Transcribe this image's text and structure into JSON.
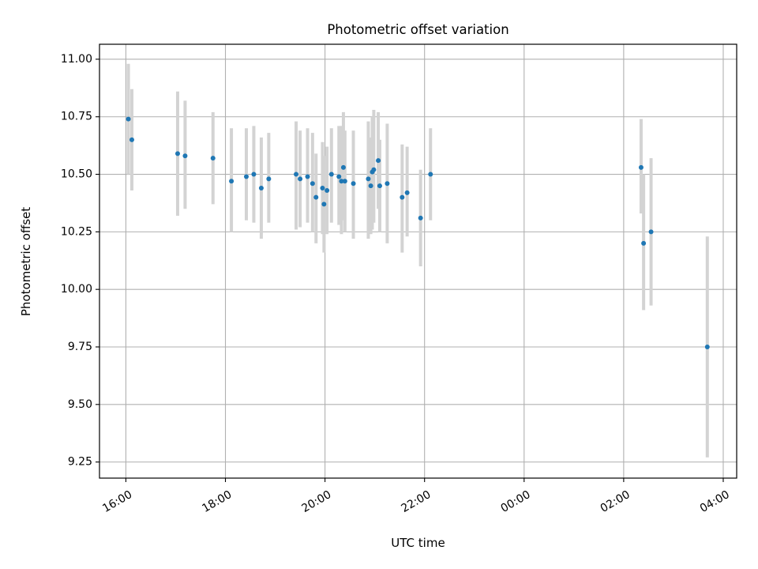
{
  "chart_data": {
    "type": "scatter",
    "title": "Photometric offset variation",
    "xlabel": "UTC time",
    "ylabel": "Photometric offset",
    "xlim": [
      -0.53,
      12.27
    ],
    "ylim": [
      9.18,
      11.065
    ],
    "grid": true,
    "x_unit": "hours since 16:00 UTC",
    "xticks": [
      {
        "value": 0,
        "label": "16:00"
      },
      {
        "value": 2,
        "label": "18:00"
      },
      {
        "value": 4,
        "label": "20:00"
      },
      {
        "value": 6,
        "label": "22:00"
      },
      {
        "value": 8,
        "label": "00:00"
      },
      {
        "value": 10,
        "label": "02:00"
      },
      {
        "value": 12,
        "label": "04:00"
      }
    ],
    "yticks": [
      {
        "value": 9.25,
        "label": "9.25"
      },
      {
        "value": 9.5,
        "label": "9.50"
      },
      {
        "value": 9.75,
        "label": "9.75"
      },
      {
        "value": 10.0,
        "label": "10.00"
      },
      {
        "value": 10.25,
        "label": "10.25"
      },
      {
        "value": 10.5,
        "label": "10.50"
      },
      {
        "value": 10.75,
        "label": "10.75"
      },
      {
        "value": 11.0,
        "label": "11.00"
      }
    ],
    "marker_color": "#1f77b4",
    "errorbar_color": "#d3d3d3",
    "points": [
      {
        "x": 0.05,
        "y": 10.74,
        "ylow": 10.5,
        "yhigh": 10.98
      },
      {
        "x": 0.12,
        "y": 10.65,
        "ylow": 10.43,
        "yhigh": 10.87
      },
      {
        "x": 1.04,
        "y": 10.59,
        "ylow": 10.32,
        "yhigh": 10.86
      },
      {
        "x": 1.19,
        "y": 10.58,
        "ylow": 10.35,
        "yhigh": 10.82
      },
      {
        "x": 1.75,
        "y": 10.57,
        "ylow": 10.37,
        "yhigh": 10.77
      },
      {
        "x": 2.12,
        "y": 10.47,
        "ylow": 10.25,
        "yhigh": 10.7
      },
      {
        "x": 2.42,
        "y": 10.49,
        "ylow": 10.3,
        "yhigh": 10.7
      },
      {
        "x": 2.57,
        "y": 10.5,
        "ylow": 10.29,
        "yhigh": 10.71
      },
      {
        "x": 2.72,
        "y": 10.44,
        "ylow": 10.22,
        "yhigh": 10.66
      },
      {
        "x": 2.87,
        "y": 10.48,
        "ylow": 10.29,
        "yhigh": 10.68
      },
      {
        "x": 3.42,
        "y": 10.5,
        "ylow": 10.26,
        "yhigh": 10.73
      },
      {
        "x": 3.5,
        "y": 10.48,
        "ylow": 10.27,
        "yhigh": 10.69
      },
      {
        "x": 3.65,
        "y": 10.49,
        "ylow": 10.29,
        "yhigh": 10.7
      },
      {
        "x": 3.75,
        "y": 10.46,
        "ylow": 10.25,
        "yhigh": 10.68
      },
      {
        "x": 3.82,
        "y": 10.4,
        "ylow": 10.2,
        "yhigh": 10.59
      },
      {
        "x": 3.95,
        "y": 10.44,
        "ylow": 10.24,
        "yhigh": 10.64
      },
      {
        "x": 3.98,
        "y": 10.37,
        "ylow": 10.16,
        "yhigh": 10.58
      },
      {
        "x": 4.04,
        "y": 10.43,
        "ylow": 10.24,
        "yhigh": 10.62
      },
      {
        "x": 4.13,
        "y": 10.5,
        "ylow": 10.29,
        "yhigh": 10.7
      },
      {
        "x": 4.28,
        "y": 10.49,
        "ylow": 10.28,
        "yhigh": 10.71
      },
      {
        "x": 4.33,
        "y": 10.47,
        "ylow": 10.24,
        "yhigh": 10.71
      },
      {
        "x": 4.37,
        "y": 10.53,
        "ylow": 10.3,
        "yhigh": 10.77
      },
      {
        "x": 4.4,
        "y": 10.47,
        "ylow": 10.25,
        "yhigh": 10.69
      },
      {
        "x": 4.57,
        "y": 10.46,
        "ylow": 10.22,
        "yhigh": 10.69
      },
      {
        "x": 4.87,
        "y": 10.48,
        "ylow": 10.22,
        "yhigh": 10.73
      },
      {
        "x": 4.92,
        "y": 10.45,
        "ylow": 10.24,
        "yhigh": 10.66
      },
      {
        "x": 4.95,
        "y": 10.51,
        "ylow": 10.26,
        "yhigh": 10.75
      },
      {
        "x": 4.98,
        "y": 10.52,
        "ylow": 10.29,
        "yhigh": 10.78
      },
      {
        "x": 5.07,
        "y": 10.56,
        "ylow": 10.35,
        "yhigh": 10.77
      },
      {
        "x": 5.1,
        "y": 10.45,
        "ylow": 10.25,
        "yhigh": 10.65
      },
      {
        "x": 5.25,
        "y": 10.46,
        "ylow": 10.2,
        "yhigh": 10.72
      },
      {
        "x": 5.55,
        "y": 10.4,
        "ylow": 10.16,
        "yhigh": 10.63
      },
      {
        "x": 5.65,
        "y": 10.42,
        "ylow": 10.23,
        "yhigh": 10.62
      },
      {
        "x": 5.92,
        "y": 10.31,
        "ylow": 10.1,
        "yhigh": 10.52
      },
      {
        "x": 6.12,
        "y": 10.5,
        "ylow": 10.3,
        "yhigh": 10.7
      },
      {
        "x": 10.35,
        "y": 10.53,
        "ylow": 10.33,
        "yhigh": 10.74
      },
      {
        "x": 10.4,
        "y": 10.2,
        "ylow": 9.91,
        "yhigh": 10.5
      },
      {
        "x": 10.55,
        "y": 10.25,
        "ylow": 9.93,
        "yhigh": 10.57
      },
      {
        "x": 11.68,
        "y": 9.75,
        "ylow": 9.27,
        "yhigh": 10.23
      }
    ]
  }
}
